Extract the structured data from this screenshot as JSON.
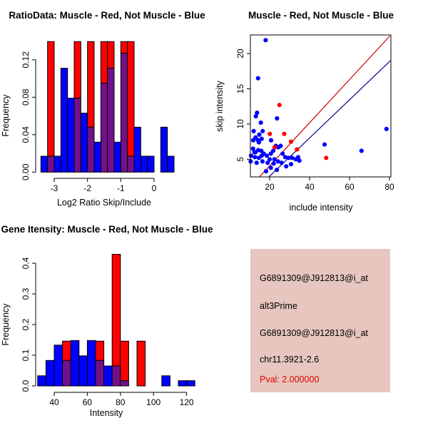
{
  "page": {
    "background": "#FFFFFF"
  },
  "colors": {
    "muscle_red": "#FF0000",
    "not_muscle_blue": "#0000FF",
    "overlap_purple": "#73108C",
    "red_line": "#CC0000",
    "blue_line": "#00008B",
    "info_panel_bg": "#E6C6BE",
    "pval_red": "#E00000"
  },
  "chart_data": [
    {
      "type": "bar",
      "subtype": "overlaid-histogram",
      "title": "RatioData: Muscle - Red, Not Muscle - Blue",
      "xlabel": "Log2 Ratio Skip/Include",
      "ylabel": "Frequency",
      "bin_start": -3.4,
      "bin_width": 0.2,
      "xlim": [
        -3.55,
        0.75
      ],
      "ylim": [
        0,
        0.1394
      ],
      "grid": false,
      "xticks": [
        -3,
        -2,
        -1,
        0
      ],
      "xtick_labels": [
        "-3",
        "-2",
        "-1",
        "0"
      ],
      "yticks": [
        0,
        0.04,
        0.08,
        0.12
      ],
      "ytick_labels": [
        "0.00",
        "0.04",
        "0.08",
        "0.12"
      ],
      "series": [
        {
          "name": "Not Muscle",
          "color": "#0000FF",
          "heights": [
            0.017,
            0.017,
            0.017,
            0.111,
            0.079,
            0.079,
            0.063,
            0.048,
            0.032,
            0.095,
            0.111,
            0.032,
            0.127,
            0.017,
            0.048,
            0.017,
            0.017,
            0,
            0.048,
            0.017
          ]
        },
        {
          "name": "Muscle",
          "color": "#FF0000",
          "heights": [
            0,
            0.143,
            0,
            0,
            0,
            0.143,
            0,
            0.143,
            0,
            0.143,
            0.143,
            0,
            0.143,
            0.143,
            0,
            0,
            0,
            0,
            0,
            0
          ]
        }
      ],
      "overlap_color": "#73108C"
    },
    {
      "type": "scatter",
      "title": "Muscle - Red, Not Muscle - Blue",
      "xlabel": "include intensity",
      "ylabel": "skip intensity",
      "xlim": [
        10.4,
        80.7
      ],
      "ylim": [
        2.47,
        22.64
      ],
      "grid": false,
      "box": true,
      "xticks": [
        20,
        40,
        60,
        80
      ],
      "xtick_labels": [
        "20",
        "40",
        "60",
        "80"
      ],
      "yticks": [
        5,
        10,
        15,
        20
      ],
      "ytick_labels": [
        "5",
        "10",
        "15",
        "20"
      ],
      "series": [
        {
          "name": "Not Muscle",
          "color": "#0000FF",
          "points": [
            [
              18,
              21.9
            ],
            [
              14.2,
              16.5
            ],
            [
              13.7,
              11.6
            ],
            [
              13.1,
              11.1
            ],
            [
              15.6,
              10.2
            ],
            [
              23.7,
              10.8
            ],
            [
              14.8,
              8.5
            ],
            [
              16,
              7.9
            ],
            [
              14.2,
              7.7
            ],
            [
              20.7,
              7.7
            ],
            [
              23.1,
              6.9
            ],
            [
              11.8,
              7.7
            ],
            [
              14.6,
              7.4
            ],
            [
              11.7,
              6.5
            ],
            [
              14.3,
              6.3
            ],
            [
              15.8,
              6.2
            ],
            [
              12.9,
              6.0
            ],
            [
              17,
              5.8
            ],
            [
              10.7,
              5.5
            ],
            [
              12.6,
              5.3
            ],
            [
              14.6,
              5.2
            ],
            [
              18.6,
              5.5
            ],
            [
              20.6,
              5.8
            ],
            [
              21.8,
              6.2
            ],
            [
              20,
              5.0
            ],
            [
              22.4,
              5.0
            ],
            [
              24.2,
              4.7
            ],
            [
              26,
              4.5
            ],
            [
              16.4,
              4.7
            ],
            [
              13.5,
              4.5
            ],
            [
              10.5,
              4.7
            ],
            [
              27.8,
              5.3
            ],
            [
              29.5,
              5.2
            ],
            [
              31.3,
              5.2
            ],
            [
              33.1,
              5.0
            ],
            [
              34.3,
              5.3
            ],
            [
              34.9,
              4.8
            ],
            [
              30.7,
              4.3
            ],
            [
              28.3,
              4.0
            ],
            [
              23.6,
              3.5
            ],
            [
              20.6,
              3.8
            ],
            [
              18.2,
              3.3
            ],
            [
              26.5,
              5.8
            ],
            [
              47.5,
              7.1
            ],
            [
              66,
              6.2
            ],
            [
              78.5,
              9.3
            ],
            [
              12,
              9.0
            ],
            [
              16.5,
              9.0
            ],
            [
              13,
              8.1
            ],
            [
              24.3,
              6.7
            ],
            [
              19,
              4.5
            ],
            [
              22,
              4.4
            ],
            [
              25.5,
              6.9
            ],
            [
              12.4,
              6.0
            ],
            [
              16,
              5.5
            ]
          ]
        },
        {
          "name": "Muscle",
          "color": "#FF0000",
          "points": [
            [
              24.9,
              12.7
            ],
            [
              20.1,
              8.6
            ],
            [
              27.3,
              8.6
            ],
            [
              22.5,
              6.7
            ],
            [
              30.7,
              7.5
            ],
            [
              33.7,
              6.4
            ],
            [
              48.3,
              5.2
            ]
          ]
        }
      ],
      "lines": [
        {
          "name": "muscle-fit-line",
          "color": "#CC0000",
          "from": [
            14.8,
            2.47
          ],
          "to": [
            80.2,
            22.5
          ]
        },
        {
          "name": "not-muscle-fit-line",
          "color": "#00008B",
          "from": [
            19.5,
            2.47
          ],
          "to": [
            80.5,
            19.0
          ]
        }
      ],
      "legend": "none"
    },
    {
      "type": "bar",
      "subtype": "overlaid-histogram",
      "title": "Gene Itensity: Muscle - Red, Not Muscle - Blue",
      "xlabel": "Intensity",
      "ylabel": "Frequency",
      "bin_start": 30,
      "bin_width": 5,
      "xlim": [
        28,
        132
      ],
      "ylim": [
        0,
        0.43
      ],
      "grid": false,
      "xticks": [
        40,
        60,
        80,
        100,
        120
      ],
      "xtick_labels": [
        "40",
        "60",
        "80",
        "100",
        "120"
      ],
      "yticks": [
        0,
        0.1,
        0.2,
        0.3,
        0.4
      ],
      "ytick_labels": [
        "0.0",
        "0.1",
        "0.2",
        "0.3",
        "0.4"
      ],
      "series": [
        {
          "name": "Not Muscle",
          "color": "#0000FF",
          "heights": [
            0.033,
            0.083,
            0.133,
            0.083,
            0.148,
            0.098,
            0.148,
            0.083,
            0.065,
            0.065,
            0.017,
            0,
            0,
            0,
            0,
            0.033,
            0,
            0.017,
            0.017,
            0
          ]
        },
        {
          "name": "Muscle",
          "color": "#FF0000",
          "heights": [
            0,
            0,
            0,
            0.146,
            0,
            0,
            0,
            0.146,
            0,
            0.429,
            0.146,
            0,
            0.146,
            0,
            0,
            0,
            0,
            0,
            0,
            0
          ]
        }
      ],
      "overlap_color": "#73108C"
    }
  ],
  "info": {
    "background": "#E6C6BE",
    "lines": [
      {
        "text": "G6891309@J912813@i_at",
        "color": "#000000"
      },
      {
        "text": "alt3Prime",
        "color": "#000000"
      },
      {
        "text": "G6891309@J912813@i_at",
        "color": "#000000"
      },
      {
        "text": "chr11.3921-2.6",
        "color": "#000000"
      },
      {
        "text": "Pval: 2.000000",
        "color": "#E00000"
      }
    ]
  }
}
